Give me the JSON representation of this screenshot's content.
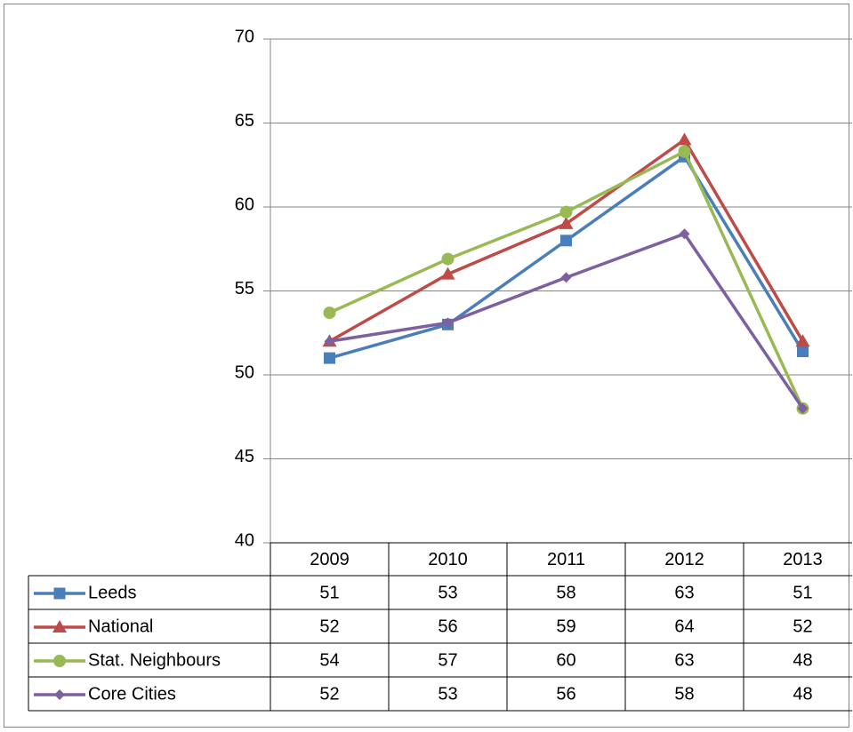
{
  "chart_data": {
    "type": "line",
    "categories": [
      "2009",
      "2010",
      "2011",
      "2012",
      "2013"
    ],
    "series": [
      {
        "name": "Leeds",
        "color": "#4a7ebb",
        "marker": "square",
        "values": [
          51.0,
          53.0,
          58.0,
          63.0,
          51.4
        ],
        "value_labels": [
          "51",
          "53",
          "58",
          "63",
          "51"
        ]
      },
      {
        "name": "National",
        "color": "#be4b48",
        "marker": "triangle",
        "values": [
          52.0,
          56.0,
          59.0,
          64.0,
          52.0
        ],
        "value_labels": [
          "52",
          "56",
          "59",
          "64",
          "52"
        ]
      },
      {
        "name": "Stat. Neighbours",
        "color": "#98b954",
        "marker": "circle",
        "values": [
          53.7,
          56.9,
          59.7,
          63.3,
          48.0
        ],
        "value_labels": [
          "54",
          "57",
          "60",
          "63",
          "48"
        ]
      },
      {
        "name": "Core Cities",
        "color": "#7d60a0",
        "marker": "diamond",
        "values": [
          52.0,
          53.1,
          55.8,
          58.4,
          48.0
        ],
        "value_labels": [
          "52",
          "53",
          "56",
          "58",
          "48"
        ]
      }
    ],
    "ylim": [
      40,
      70
    ],
    "yticks": [
      40,
      45,
      50,
      55,
      60,
      65,
      70
    ],
    "grid": true
  }
}
